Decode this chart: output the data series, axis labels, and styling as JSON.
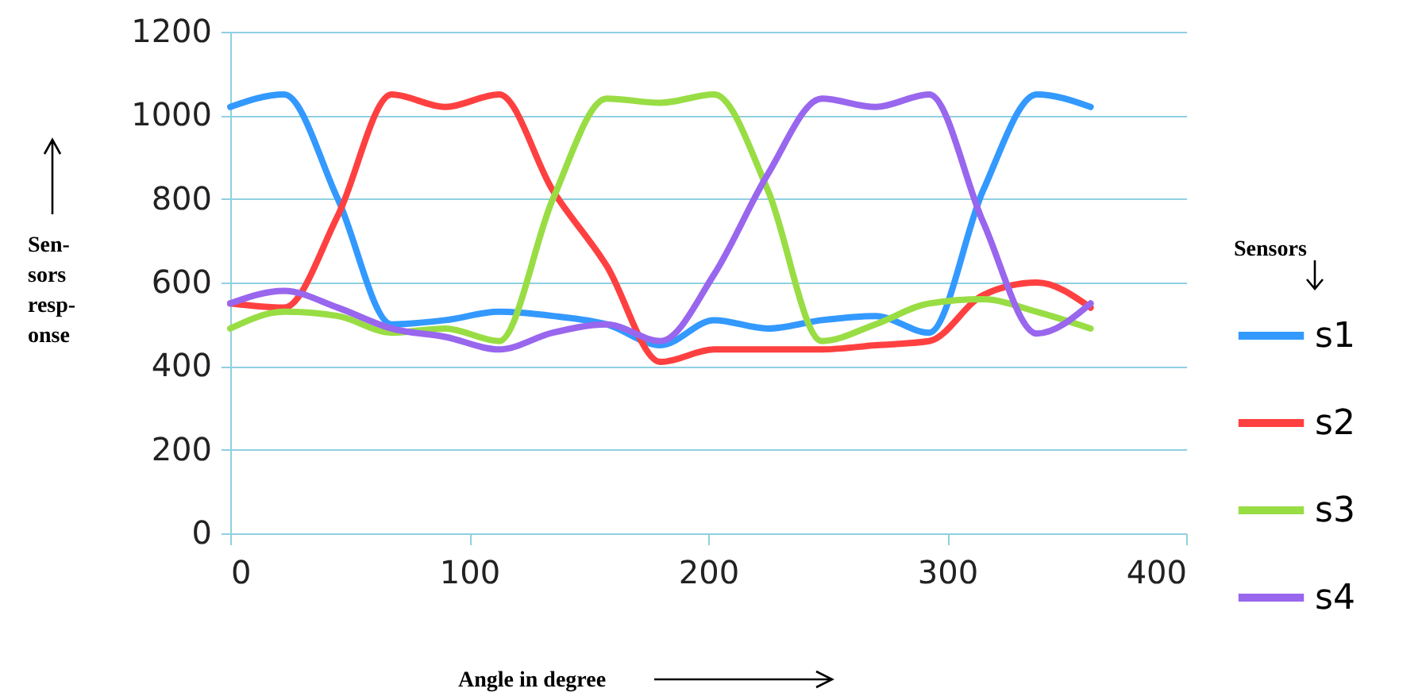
{
  "chart_data": {
    "type": "line",
    "xlabel": "Angle in degree",
    "ylabel": [
      "Sen-",
      "sors",
      "resp-",
      "onse"
    ],
    "legend_title": "Sensors",
    "x": [
      0,
      22.5,
      45,
      67.5,
      90,
      112.5,
      135,
      157.5,
      180,
      202.5,
      225,
      247.5,
      270,
      292.5,
      315,
      337.5,
      360
    ],
    "series": [
      {
        "name": "s1",
        "color": "#3399ff",
        "values": [
          1020,
          1050,
          800,
          500,
          510,
          530,
          520,
          500,
          450,
          510,
          490,
          510,
          520,
          480,
          820,
          1050,
          1020
        ]
      },
      {
        "name": "s2",
        "color": "#ff4040",
        "values": [
          550,
          540,
          760,
          1050,
          1020,
          1050,
          820,
          640,
          410,
          440,
          440,
          440,
          450,
          460,
          570,
          600,
          540
        ]
      },
      {
        "name": "s3",
        "color": "#99dd44",
        "values": [
          490,
          530,
          520,
          480,
          490,
          460,
          800,
          1040,
          1030,
          1050,
          820,
          460,
          500,
          550,
          560,
          530,
          490
        ]
      },
      {
        "name": "s4",
        "color": "#9966ee",
        "values": [
          550,
          580,
          540,
          490,
          470,
          440,
          480,
          500,
          460,
          620,
          860,
          1040,
          1020,
          1050,
          745,
          478,
          550
        ]
      }
    ],
    "xlim": [
      0,
      400
    ],
    "xticks": [
      0,
      100,
      200,
      300,
      400
    ],
    "ylim": [
      0,
      1200
    ],
    "yticks": [
      0,
      200,
      400,
      600,
      800,
      1000,
      1200
    ],
    "grid": "y",
    "legend": "right",
    "marker": "none",
    "line_style": "solid"
  }
}
